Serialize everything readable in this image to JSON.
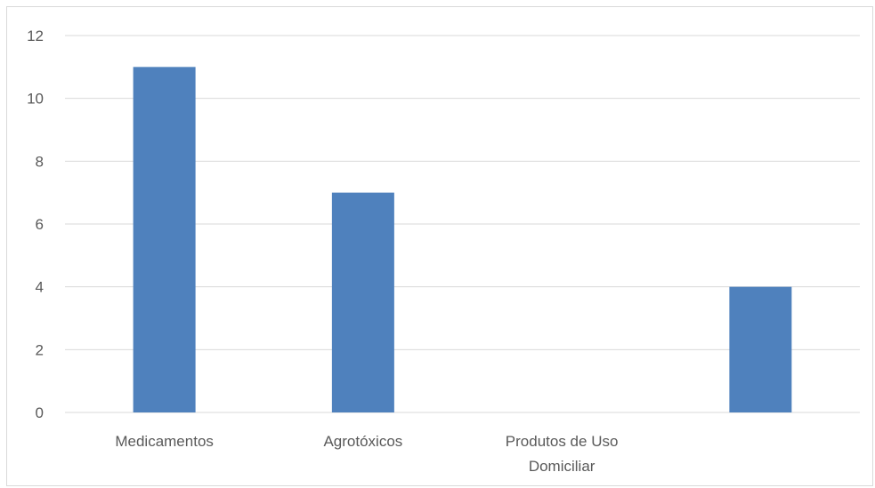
{
  "chart_data": {
    "type": "bar",
    "categories": [
      [
        "Medicamentos"
      ],
      [
        "Agrotóxicos"
      ],
      [
        "Produtos de Uso",
        "Domiciliar"
      ],
      [
        ""
      ]
    ],
    "values": [
      11,
      7,
      0,
      4
    ],
    "ylim": [
      0,
      12
    ],
    "yticks": [
      0,
      2,
      4,
      6,
      8,
      10,
      12
    ],
    "grid": true,
    "legend": "none",
    "colors": {
      "bar": "#4f81bd"
    }
  }
}
